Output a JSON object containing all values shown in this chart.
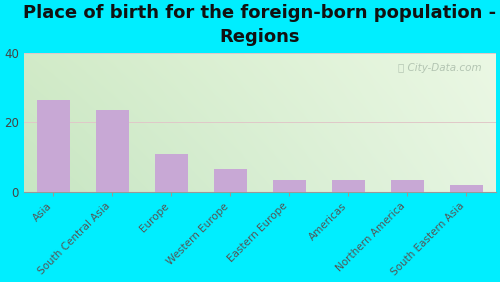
{
  "title": "Place of birth for the foreign-born population -\nRegions",
  "categories": [
    "Asia",
    "South Central Asia",
    "Europe",
    "Western Europe",
    "Eastern Europe",
    "Americas",
    "Northern America",
    "South Eastern Asia"
  ],
  "values": [
    26.5,
    23.5,
    11.0,
    6.5,
    3.5,
    3.5,
    3.5,
    2.0
  ],
  "bar_color": "#c8a8d5",
  "background_outer": "#00eeff",
  "ylim": [
    0,
    40
  ],
  "yticks": [
    0,
    20,
    40
  ],
  "title_fontsize": 13,
  "tick_fontsize": 7.5,
  "watermark": "ⓘ City-Data.com",
  "grad_top_left": "#c8e8c0",
  "grad_top_right": "#e8f4e8",
  "grad_bottom_left": "#d8ecc8",
  "grad_bottom_right": "#f5faf0"
}
